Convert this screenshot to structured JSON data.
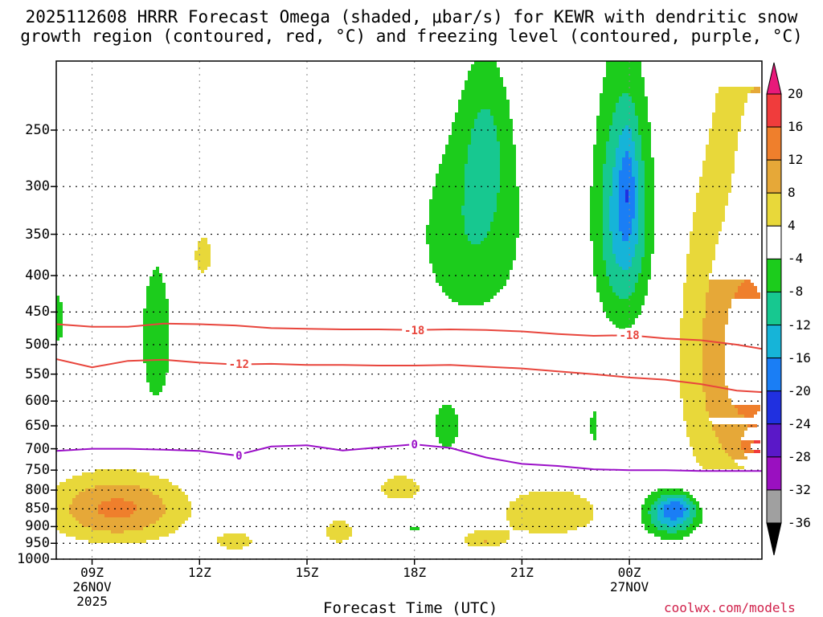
{
  "title_line1": "2025112608 HRRR Forecast Omega (shaded, μbar/s) for KEWR with dendritic snow",
  "title_line2": "growth region (contoured, red, °C) and freezing level (contoured, purple, °C)",
  "x_axis_title": "Forecast Time (UTC)",
  "credit": "coolwx.com/models",
  "colors": {
    "ground": "#a0522d",
    "dgz": "#e8453c",
    "freezing": "#9b10c8",
    "grid": "#888888"
  },
  "chart_data": {
    "type": "heatmap",
    "title": "2025112608 HRRR Forecast Omega (shaded, μbar/s) for KEWR with dendritic snow growth region (contoured, red, °C) and freezing level (contoured, purple, °C)",
    "xlabel": "Forecast Time (UTC)",
    "ylabel": "",
    "y_scale": "log-pressure (inverted)",
    "ylim_hPa": [
      1000,
      200
    ],
    "xlim_hours_utc": [
      8,
      27.7
    ],
    "grid": true,
    "legend": "right (colorbar)",
    "y_ticks": [
      250,
      300,
      350,
      400,
      450,
      500,
      550,
      600,
      650,
      700,
      750,
      800,
      850,
      900,
      950,
      1000
    ],
    "x_ticks": [
      {
        "hour": 9,
        "line1": "09Z",
        "line2": "26NOV",
        "line3": "2025"
      },
      {
        "hour": 12,
        "line1": "12Z",
        "line2": "",
        "line3": ""
      },
      {
        "hour": 15,
        "line1": "15Z",
        "line2": "",
        "line3": ""
      },
      {
        "hour": 18,
        "line1": "18Z",
        "line2": "",
        "line3": ""
      },
      {
        "hour": 21,
        "line1": "21Z",
        "line2": "",
        "line3": ""
      },
      {
        "hour": 24,
        "line1": "00Z",
        "line2": "27NOV",
        "line3": ""
      }
    ],
    "colorbar": {
      "labels": [
        "20",
        "16",
        "12",
        "8",
        "4",
        "-4",
        "-8",
        "-12",
        "-16",
        "-20",
        "-24",
        "-28",
        "-32",
        "-36"
      ],
      "bins": [
        {
          "lo": 20,
          "hi": null,
          "color": "#e8197a"
        },
        {
          "lo": 16,
          "hi": 20,
          "color": "#f03c3c"
        },
        {
          "lo": 12,
          "hi": 16,
          "color": "#ef7f2c"
        },
        {
          "lo": 8,
          "hi": 12,
          "color": "#e6a838"
        },
        {
          "lo": 4,
          "hi": 8,
          "color": "#e8d83a"
        },
        {
          "lo": -4,
          "hi": 4,
          "color": "#ffffff"
        },
        {
          "lo": -8,
          "hi": -4,
          "color": "#1ccc1c"
        },
        {
          "lo": -12,
          "hi": -8,
          "color": "#17c890"
        },
        {
          "lo": -16,
          "hi": -12,
          "color": "#16b4d8"
        },
        {
          "lo": -20,
          "hi": -16,
          "color": "#1a7ef5"
        },
        {
          "lo": -24,
          "hi": -20,
          "color": "#2030e0"
        },
        {
          "lo": -28,
          "hi": -24,
          "color": "#5a18c8"
        },
        {
          "lo": -32,
          "hi": -28,
          "color": "#9a10c0"
        },
        {
          "lo": -36,
          "hi": -32,
          "color": "#a0a0a0"
        },
        {
          "lo": null,
          "hi": -36,
          "color": "#000000"
        }
      ]
    },
    "contours": [
      {
        "name": "dgz",
        "value": -18,
        "label": "-18",
        "label_points": [
          [
            18.0,
            477
          ],
          [
            24.0,
            485
          ]
        ],
        "points": [
          [
            8,
            468
          ],
          [
            9,
            472
          ],
          [
            10,
            472
          ],
          [
            11,
            467
          ],
          [
            12,
            468
          ],
          [
            13,
            470
          ],
          [
            14,
            474
          ],
          [
            15,
            475
          ],
          [
            16,
            476
          ],
          [
            17,
            476
          ],
          [
            18,
            477
          ],
          [
            19,
            476
          ],
          [
            20,
            477
          ],
          [
            21,
            479
          ],
          [
            22,
            483
          ],
          [
            23,
            486
          ],
          [
            24,
            485
          ],
          [
            25,
            490
          ],
          [
            26,
            493
          ],
          [
            27,
            500
          ],
          [
            27.7,
            507
          ]
        ]
      },
      {
        "name": "dgz",
        "value": -12,
        "label": "-12",
        "label_points": [
          [
            13.1,
            532
          ]
        ],
        "points": [
          [
            8,
            524
          ],
          [
            9,
            538
          ],
          [
            10,
            527
          ],
          [
            11,
            525
          ],
          [
            12,
            530
          ],
          [
            13,
            533
          ],
          [
            14,
            532
          ],
          [
            15,
            534
          ],
          [
            16,
            534
          ],
          [
            17,
            535
          ],
          [
            18,
            535
          ],
          [
            19,
            534
          ],
          [
            20,
            537
          ],
          [
            21,
            540
          ],
          [
            22,
            545
          ],
          [
            23,
            550
          ],
          [
            24,
            556
          ],
          [
            25,
            560
          ],
          [
            26,
            568
          ],
          [
            27,
            580
          ],
          [
            27.7,
            583
          ]
        ]
      },
      {
        "name": "freezing",
        "value": 0,
        "label": "0",
        "label_points": [
          [
            13.1,
            715
          ],
          [
            18.0,
            690
          ]
        ],
        "points": [
          [
            8,
            705
          ],
          [
            9,
            700
          ],
          [
            10,
            700
          ],
          [
            11,
            702
          ],
          [
            12,
            705
          ],
          [
            13,
            715
          ],
          [
            14,
            695
          ],
          [
            15,
            692
          ],
          [
            16,
            704
          ],
          [
            17,
            697
          ],
          [
            18,
            690
          ],
          [
            19,
            698
          ],
          [
            20,
            720
          ],
          [
            21,
            735
          ],
          [
            22,
            740
          ],
          [
            23,
            748
          ],
          [
            24,
            750
          ],
          [
            25,
            750
          ],
          [
            26,
            752
          ],
          [
            27,
            752
          ],
          [
            27.7,
            752
          ]
        ]
      }
    ]
  }
}
